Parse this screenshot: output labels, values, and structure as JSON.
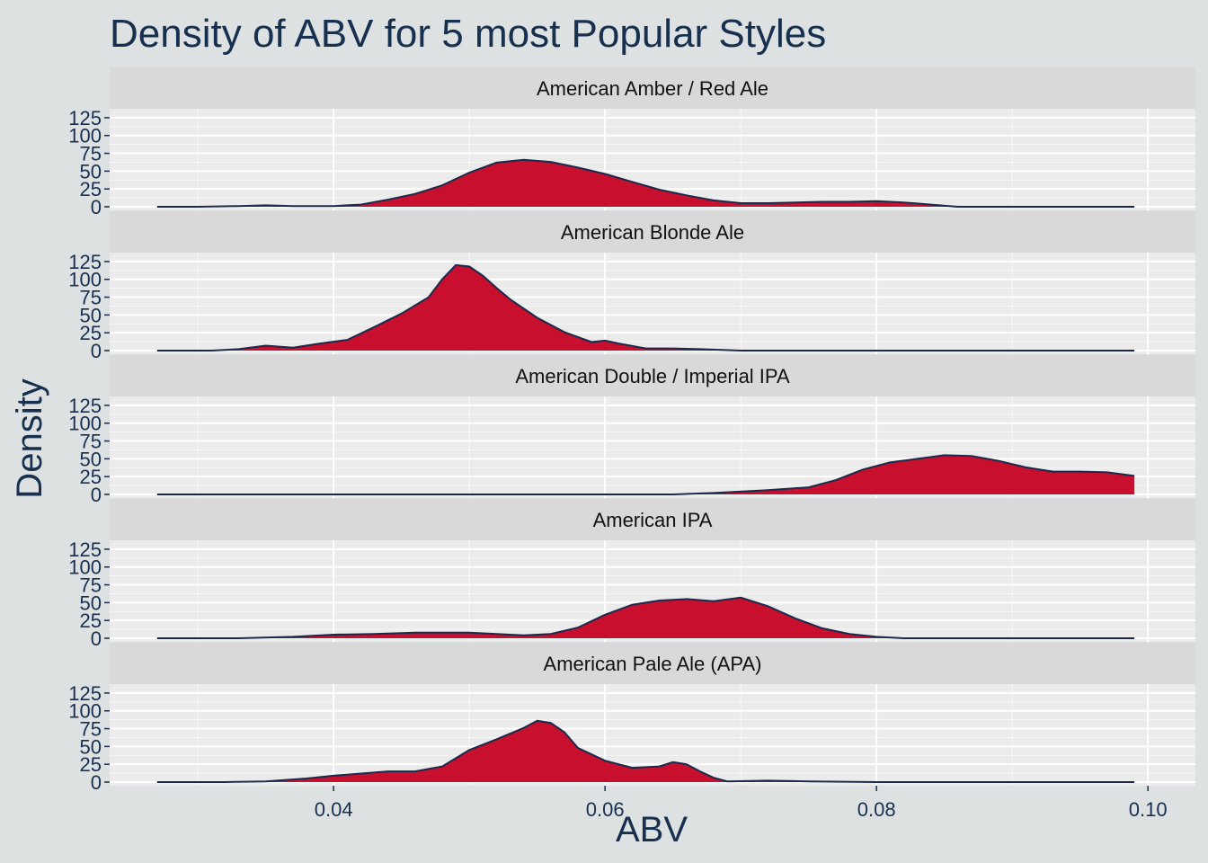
{
  "chart_data": {
    "type": "area",
    "title": "Density of ABV for 5 most Popular Styles",
    "xlabel": "ABV",
    "ylabel": "Density",
    "xlim": [
      0.0235,
      0.1035
    ],
    "ylim": [
      0,
      135
    ],
    "x_ticks": [
      "0.04",
      "0.06",
      "0.08",
      "0.10"
    ],
    "x_tick_values": [
      0.04,
      0.06,
      0.08,
      0.1
    ],
    "y_ticks": [
      "0",
      "25",
      "50",
      "75",
      "100",
      "125"
    ],
    "y_tick_values": [
      0,
      25,
      50,
      75,
      100,
      125
    ],
    "fill_color": "#c8102e",
    "line_color": "#1b2a4a",
    "panel_color": "#ebebeb",
    "strip_color": "#d9d9d9",
    "grid": true,
    "legend": "none",
    "series": [
      {
        "name": "American Amber / Red Ale",
        "x": [
          0.027,
          0.03,
          0.033,
          0.035,
          0.037,
          0.04,
          0.042,
          0.044,
          0.046,
          0.048,
          0.05,
          0.052,
          0.054,
          0.056,
          0.058,
          0.06,
          0.062,
          0.064,
          0.066,
          0.068,
          0.07,
          0.072,
          0.074,
          0.076,
          0.078,
          0.08,
          0.082,
          0.084,
          0.086,
          0.09,
          0.095,
          0.099
        ],
        "y": [
          0,
          0,
          1,
          2,
          1,
          1,
          3,
          10,
          18,
          30,
          48,
          62,
          66,
          63,
          55,
          46,
          35,
          24,
          16,
          9,
          5,
          5,
          6,
          7,
          7,
          8,
          6,
          3,
          0,
          0,
          0,
          0
        ]
      },
      {
        "name": "American Blonde Ale",
        "x": [
          0.027,
          0.031,
          0.033,
          0.035,
          0.037,
          0.039,
          0.041,
          0.043,
          0.045,
          0.047,
          0.048,
          0.049,
          0.05,
          0.051,
          0.052,
          0.053,
          0.055,
          0.057,
          0.059,
          0.06,
          0.061,
          0.063,
          0.065,
          0.067,
          0.07,
          0.08,
          0.09,
          0.099
        ],
        "y": [
          0,
          0,
          2,
          7,
          4,
          10,
          15,
          33,
          52,
          75,
          100,
          120,
          118,
          105,
          88,
          72,
          46,
          26,
          12,
          14,
          10,
          3,
          3,
          2,
          0,
          0,
          0,
          0
        ]
      },
      {
        "name": "American Double / Imperial IPA",
        "x": [
          0.027,
          0.04,
          0.06,
          0.065,
          0.068,
          0.072,
          0.075,
          0.077,
          0.079,
          0.081,
          0.083,
          0.085,
          0.087,
          0.089,
          0.091,
          0.093,
          0.095,
          0.097,
          0.099
        ],
        "y": [
          0,
          0,
          0,
          0,
          2,
          6,
          10,
          20,
          35,
          45,
          50,
          55,
          54,
          47,
          38,
          32,
          32,
          31,
          26
        ]
      },
      {
        "name": "American IPA",
        "x": [
          0.027,
          0.033,
          0.037,
          0.04,
          0.043,
          0.046,
          0.049,
          0.05,
          0.052,
          0.054,
          0.056,
          0.058,
          0.06,
          0.062,
          0.064,
          0.066,
          0.068,
          0.07,
          0.072,
          0.074,
          0.076,
          0.078,
          0.08,
          0.082,
          0.085,
          0.09,
          0.099
        ],
        "y": [
          0,
          0,
          2,
          5,
          6,
          8,
          8,
          8,
          6,
          4,
          6,
          15,
          33,
          47,
          53,
          55,
          52,
          57,
          45,
          28,
          14,
          6,
          2,
          0,
          0,
          0,
          0
        ]
      },
      {
        "name": "American Pale Ale (APA)",
        "x": [
          0.027,
          0.032,
          0.035,
          0.038,
          0.04,
          0.042,
          0.044,
          0.046,
          0.048,
          0.05,
          0.052,
          0.054,
          0.055,
          0.056,
          0.057,
          0.058,
          0.06,
          0.062,
          0.064,
          0.065,
          0.066,
          0.067,
          0.068,
          0.069,
          0.072,
          0.075,
          0.08,
          0.099
        ],
        "y": [
          0,
          0,
          1,
          5,
          9,
          12,
          15,
          15,
          22,
          45,
          60,
          76,
          86,
          83,
          70,
          48,
          30,
          20,
          22,
          28,
          25,
          15,
          6,
          1,
          2,
          1,
          0,
          0
        ]
      }
    ]
  }
}
